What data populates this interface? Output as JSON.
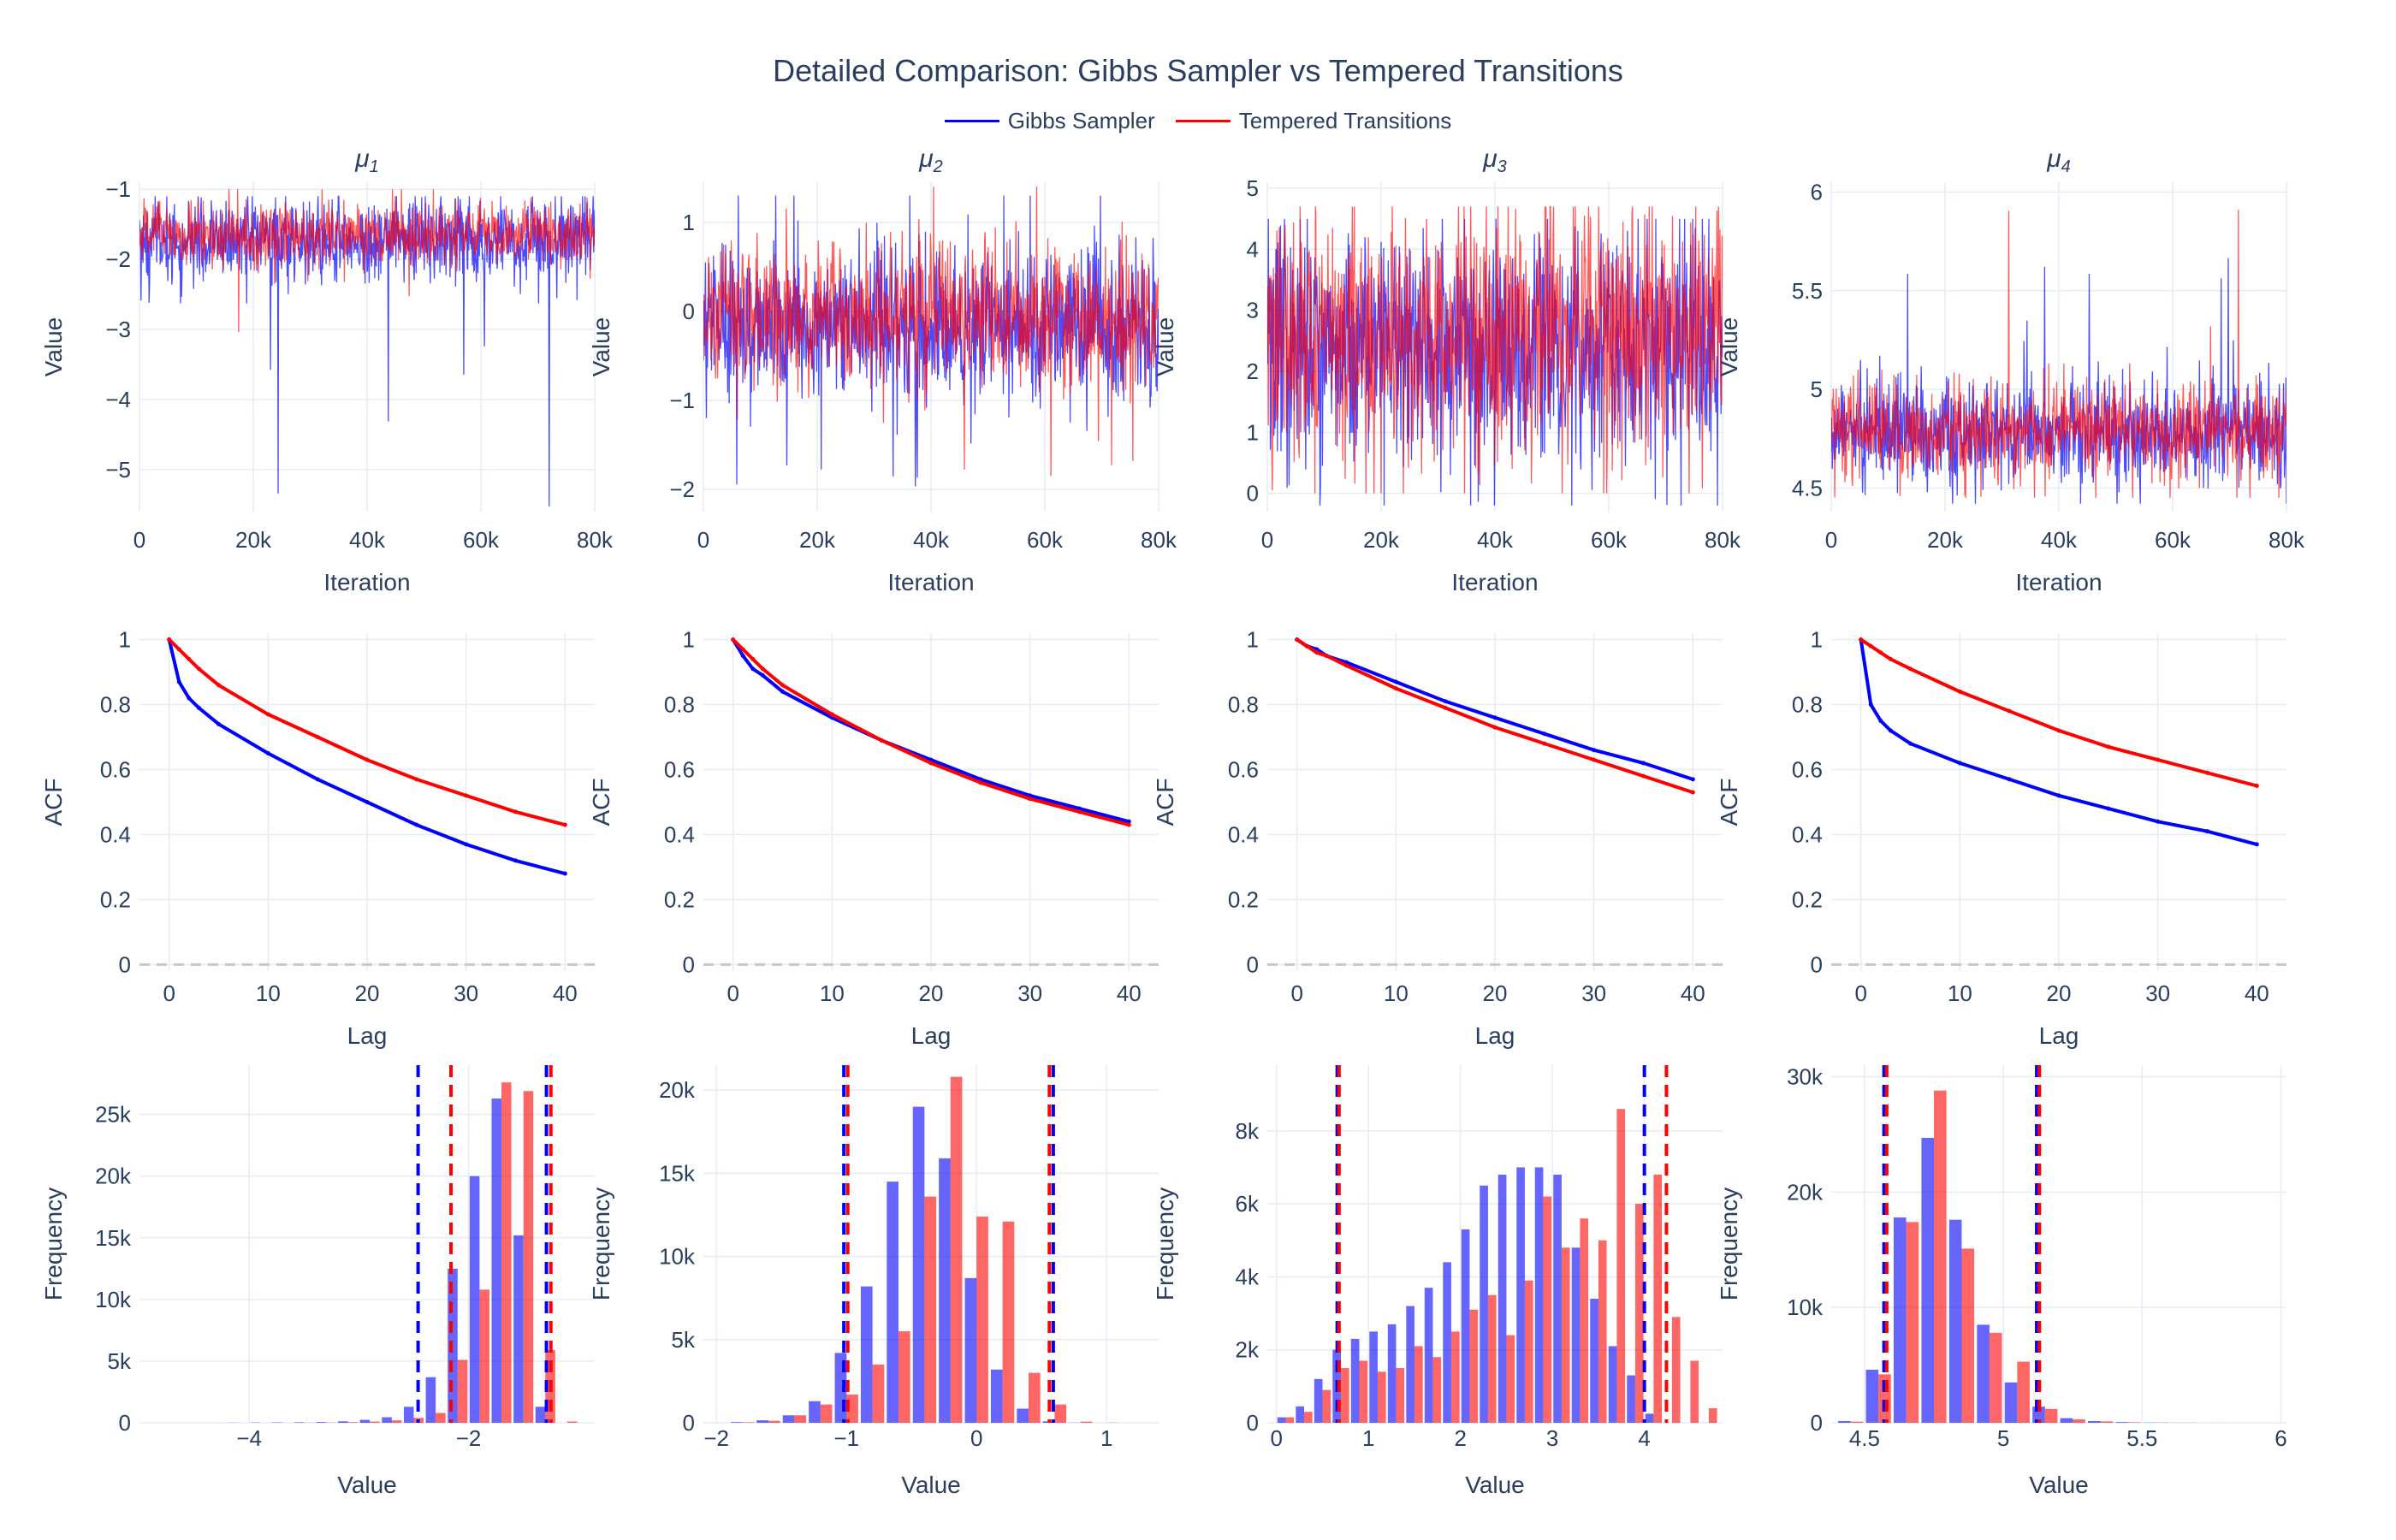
{
  "title": "Detailed Comparison: Gibbs Sampler vs Tempered Transitions",
  "colors": {
    "gibbs": "#0000ff",
    "tempered": "#ff0000",
    "grid": "#e5ecf6",
    "axis_text": "#2a3f5f",
    "dash": "#c8c8c8"
  },
  "legend": [
    {
      "name": "Gibbs Sampler",
      "color": "#0000ff"
    },
    {
      "name": "Tempered Transitions",
      "color": "#ff0000"
    }
  ],
  "chart_data": [
    {
      "type": "line",
      "title": "μ1",
      "xlabel": "Iteration",
      "ylabel": "Value",
      "xlim": [
        0,
        80000
      ],
      "ylim": [
        -5.6,
        -0.9
      ],
      "xticks": [
        0,
        20000,
        40000,
        60000,
        80000
      ],
      "xtick_labels": [
        "0",
        "20k",
        "40k",
        "60k",
        "80k"
      ],
      "yticks": [
        -5,
        -4,
        -3,
        -2,
        -1
      ],
      "ytick_labels": [
        "−5",
        "−4",
        "−3",
        "−2",
        "−1"
      ],
      "series": [
        {
          "name": "Gibbs Sampler",
          "center": -1.75,
          "sd": 0.32,
          "min": -5.55,
          "max": -1.1
        },
        {
          "name": "Tempered Transitions",
          "center": -1.65,
          "sd": 0.22,
          "min": -3.5,
          "max": -1.0
        }
      ]
    },
    {
      "type": "line",
      "title": "μ2",
      "xlabel": "Iteration",
      "ylabel": "Value",
      "xlim": [
        0,
        80000
      ],
      "ylim": [
        -2.25,
        1.45
      ],
      "xticks": [
        0,
        20000,
        40000,
        60000,
        80000
      ],
      "xtick_labels": [
        "0",
        "20k",
        "40k",
        "60k",
        "80k"
      ],
      "yticks": [
        -2,
        -1,
        0,
        1
      ],
      "ytick_labels": [
        "−2",
        "−1",
        "0",
        "1"
      ],
      "series": [
        {
          "name": "Gibbs Sampler",
          "center": -0.15,
          "sd": 0.42,
          "min": -2.1,
          "max": 1.3
        },
        {
          "name": "Tempered Transitions",
          "center": -0.05,
          "sd": 0.4,
          "min": -1.9,
          "max": 1.4
        }
      ]
    },
    {
      "type": "line",
      "title": "μ3",
      "xlabel": "Iteration",
      "ylabel": "Value",
      "xlim": [
        0,
        80000
      ],
      "ylim": [
        -0.3,
        5.1
      ],
      "xticks": [
        0,
        20000,
        40000,
        60000,
        80000
      ],
      "xtick_labels": [
        "0",
        "20k",
        "40k",
        "60k",
        "80k"
      ],
      "yticks": [
        0,
        1,
        2,
        3,
        4,
        5
      ],
      "ytick_labels": [
        "0",
        "1",
        "2",
        "3",
        "4",
        "5"
      ],
      "series": [
        {
          "name": "Gibbs Sampler",
          "center": 2.45,
          "sd": 0.95,
          "min": -0.2,
          "max": 4.5
        },
        {
          "name": "Tempered Transitions",
          "center": 2.6,
          "sd": 1.0,
          "min": 0.0,
          "max": 4.7
        }
      ]
    },
    {
      "type": "line",
      "title": "μ4",
      "xlabel": "Iteration",
      "ylabel": "Value",
      "xlim": [
        0,
        80000
      ],
      "ylim": [
        4.38,
        6.05
      ],
      "xticks": [
        0,
        20000,
        40000,
        60000,
        80000
      ],
      "xtick_labels": [
        "0",
        "20k",
        "40k",
        "60k",
        "80k"
      ],
      "yticks": [
        4.5,
        5,
        5.5,
        6
      ],
      "ytick_labels": [
        "4.5",
        "5",
        "5.5",
        "6"
      ],
      "series": [
        {
          "name": "Gibbs Sampler",
          "center": 4.78,
          "sd": 0.13,
          "min": 4.42,
          "max": 5.8
        },
        {
          "name": "Tempered Transitions",
          "center": 4.8,
          "sd": 0.12,
          "min": 4.45,
          "max": 5.95
        }
      ]
    },
    {
      "type": "line",
      "title": "",
      "xlabel": "Lag",
      "ylabel": "ACF",
      "xlim": [
        -3,
        43
      ],
      "ylim": [
        -0.02,
        1.02
      ],
      "xticks": [
        0,
        10,
        20,
        30,
        40
      ],
      "xtick_labels": [
        "0",
        "10",
        "20",
        "30",
        "40"
      ],
      "yticks": [
        0,
        0.2,
        0.4,
        0.6,
        0.8,
        1
      ],
      "ytick_labels": [
        "0",
        "0.2",
        "0.4",
        "0.6",
        "0.8",
        "1"
      ],
      "zero_line": true,
      "series": [
        {
          "name": "Gibbs Sampler",
          "lag": [
            0,
            1,
            2,
            3,
            5,
            10,
            15,
            20,
            25,
            30,
            35,
            40
          ],
          "acf": [
            1,
            0.87,
            0.82,
            0.79,
            0.74,
            0.65,
            0.57,
            0.5,
            0.43,
            0.37,
            0.32,
            0.28
          ]
        },
        {
          "name": "Tempered Transitions",
          "lag": [
            0,
            1,
            2,
            3,
            5,
            10,
            15,
            20,
            25,
            30,
            35,
            40
          ],
          "acf": [
            1,
            0.97,
            0.94,
            0.91,
            0.86,
            0.77,
            0.7,
            0.63,
            0.57,
            0.52,
            0.47,
            0.43
          ]
        }
      ]
    },
    {
      "type": "line",
      "title": "",
      "xlabel": "Lag",
      "ylabel": "ACF",
      "xlim": [
        -3,
        43
      ],
      "ylim": [
        -0.02,
        1.02
      ],
      "xticks": [
        0,
        10,
        20,
        30,
        40
      ],
      "xtick_labels": [
        "0",
        "10",
        "20",
        "30",
        "40"
      ],
      "yticks": [
        0,
        0.2,
        0.4,
        0.6,
        0.8,
        1
      ],
      "ytick_labels": [
        "0",
        "0.2",
        "0.4",
        "0.6",
        "0.8",
        "1"
      ],
      "zero_line": true,
      "series": [
        {
          "name": "Gibbs Sampler",
          "lag": [
            0,
            1,
            2,
            3,
            5,
            10,
            15,
            20,
            25,
            30,
            35,
            40
          ],
          "acf": [
            1,
            0.95,
            0.91,
            0.89,
            0.84,
            0.76,
            0.69,
            0.63,
            0.57,
            0.52,
            0.48,
            0.44
          ]
        },
        {
          "name": "Tempered Transitions",
          "lag": [
            0,
            1,
            2,
            3,
            5,
            10,
            15,
            20,
            25,
            30,
            35,
            40
          ],
          "acf": [
            1,
            0.97,
            0.94,
            0.91,
            0.86,
            0.77,
            0.69,
            0.62,
            0.56,
            0.51,
            0.47,
            0.43
          ]
        }
      ]
    },
    {
      "type": "line",
      "title": "",
      "xlabel": "Lag",
      "ylabel": "ACF",
      "xlim": [
        -3,
        43
      ],
      "ylim": [
        -0.02,
        1.02
      ],
      "xticks": [
        0,
        10,
        20,
        30,
        40
      ],
      "xtick_labels": [
        "0",
        "10",
        "20",
        "30",
        "40"
      ],
      "yticks": [
        0,
        0.2,
        0.4,
        0.6,
        0.8,
        1
      ],
      "ytick_labels": [
        "0",
        "0.2",
        "0.4",
        "0.6",
        "0.8",
        "1"
      ],
      "zero_line": true,
      "series": [
        {
          "name": "Gibbs Sampler",
          "lag": [
            0,
            1,
            2,
            3,
            5,
            10,
            15,
            20,
            25,
            30,
            35,
            40
          ],
          "acf": [
            1,
            0.98,
            0.97,
            0.95,
            0.93,
            0.87,
            0.81,
            0.76,
            0.71,
            0.66,
            0.62,
            0.57
          ]
        },
        {
          "name": "Tempered Transitions",
          "lag": [
            0,
            1,
            2,
            3,
            5,
            10,
            15,
            20,
            25,
            30,
            35,
            40
          ],
          "acf": [
            1,
            0.98,
            0.96,
            0.95,
            0.92,
            0.85,
            0.79,
            0.73,
            0.68,
            0.63,
            0.58,
            0.53
          ]
        }
      ]
    },
    {
      "type": "line",
      "title": "",
      "xlabel": "Lag",
      "ylabel": "ACF",
      "xlim": [
        -3,
        43
      ],
      "ylim": [
        -0.02,
        1.02
      ],
      "xticks": [
        0,
        10,
        20,
        30,
        40
      ],
      "xtick_labels": [
        "0",
        "10",
        "20",
        "30",
        "40"
      ],
      "yticks": [
        0,
        0.2,
        0.4,
        0.6,
        0.8,
        1
      ],
      "ytick_labels": [
        "0",
        "0.2",
        "0.4",
        "0.6",
        "0.8",
        "1"
      ],
      "zero_line": true,
      "series": [
        {
          "name": "Gibbs Sampler",
          "lag": [
            0,
            1,
            2,
            3,
            5,
            10,
            15,
            20,
            25,
            30,
            35,
            40
          ],
          "acf": [
            1,
            0.8,
            0.75,
            0.72,
            0.68,
            0.62,
            0.57,
            0.52,
            0.48,
            0.44,
            0.41,
            0.37
          ]
        },
        {
          "name": "Tempered Transitions",
          "lag": [
            0,
            1,
            2,
            3,
            5,
            10,
            15,
            20,
            25,
            30,
            35,
            40
          ],
          "acf": [
            1,
            0.98,
            0.96,
            0.94,
            0.91,
            0.84,
            0.78,
            0.72,
            0.67,
            0.63,
            0.59,
            0.55
          ]
        }
      ]
    },
    {
      "type": "bar",
      "title": "",
      "xlabel": "Value",
      "ylabel": "Frequency",
      "xlim": [
        -5.0,
        -0.85
      ],
      "ylim": [
        0,
        29000
      ],
      "xticks": [
        -4,
        -2
      ],
      "xtick_labels": [
        "−4",
        "−2"
      ],
      "yticks": [
        0,
        5000,
        10000,
        15000,
        20000,
        25000
      ],
      "ytick_labels": [
        "0",
        "5k",
        "10k",
        "15k",
        "20k",
        "25k"
      ],
      "bin_start": -5.0,
      "bin_width": 0.2,
      "series": [
        {
          "name": "Gibbs Sampler",
          "values": [
            0,
            0,
            0,
            0,
            10,
            20,
            30,
            40,
            60,
            120,
            240,
            450,
            1300,
            3700,
            12500,
            20000,
            26300,
            15200,
            1300,
            0
          ]
        },
        {
          "name": "Tempered Transitions",
          "values": [
            0,
            0,
            0,
            0,
            0,
            0,
            0,
            10,
            20,
            50,
            100,
            200,
            400,
            800,
            5100,
            10800,
            27600,
            26900,
            5900,
            100
          ]
        }
      ],
      "vlines": [
        {
          "series": "Gibbs Sampler",
          "x": -2.46
        },
        {
          "series": "Gibbs Sampler",
          "x": -1.29
        },
        {
          "series": "Tempered Transitions",
          "x": -2.16
        },
        {
          "series": "Tempered Transitions",
          "x": -1.25
        }
      ]
    },
    {
      "type": "bar",
      "title": "",
      "xlabel": "Value",
      "ylabel": "Frequency",
      "xlim": [
        -2.1,
        1.4
      ],
      "ylim": [
        0,
        21500
      ],
      "xticks": [
        -2,
        -1,
        0,
        1
      ],
      "xtick_labels": [
        "−2",
        "−1",
        "0",
        "1"
      ],
      "yticks": [
        0,
        5000,
        10000,
        15000,
        20000
      ],
      "ytick_labels": [
        "0",
        "5k",
        "10k",
        "15k",
        "20k"
      ],
      "bin_start": -1.9,
      "bin_width": 0.2,
      "series": [
        {
          "name": "Gibbs Sampler",
          "values": [
            40,
            150,
            450,
            1300,
            4200,
            8200,
            14500,
            19000,
            15900,
            8700,
            3200,
            850,
            90,
            10,
            0,
            0
          ]
        },
        {
          "name": "Tempered Transitions",
          "values": [
            30,
            120,
            450,
            1100,
            1700,
            3500,
            5500,
            13600,
            20800,
            12400,
            12100,
            3000,
            1100,
            70,
            10,
            0
          ]
        }
      ],
      "vlines": [
        {
          "series": "Gibbs Sampler",
          "x": -1.02
        },
        {
          "series": "Gibbs Sampler",
          "x": 0.59
        },
        {
          "series": "Tempered Transitions",
          "x": -0.99
        },
        {
          "series": "Tempered Transitions",
          "x": 0.56
        }
      ]
    },
    {
      "type": "bar",
      "title": "",
      "xlabel": "Value",
      "ylabel": "Frequency",
      "xlim": [
        -0.1,
        4.85
      ],
      "ylim": [
        0,
        9800
      ],
      "xticks": [
        0,
        1,
        2,
        3,
        4
      ],
      "xtick_labels": [
        "0",
        "1",
        "2",
        "3",
        "4"
      ],
      "yticks": [
        0,
        2000,
        4000,
        6000,
        8000
      ],
      "ytick_labels": [
        "0",
        "2k",
        "4k",
        "6k",
        "8k"
      ],
      "bin_start": 0.0,
      "bin_width": 0.2,
      "series": [
        {
          "name": "Gibbs Sampler",
          "values": [
            150,
            450,
            1200,
            2000,
            2300,
            2500,
            2700,
            3200,
            3700,
            4400,
            5300,
            6500,
            6800,
            7000,
            7000,
            6800,
            4800,
            3400,
            2100,
            1300,
            250,
            0,
            0,
            0
          ]
        },
        {
          "name": "Tempered Transitions",
          "values": [
            150,
            300,
            900,
            1500,
            1700,
            1400,
            1500,
            2100,
            1800,
            2500,
            3100,
            3500,
            2400,
            3900,
            6200,
            4800,
            5600,
            5000,
            8600,
            6000,
            6800,
            2900,
            1700,
            400
          ]
        }
      ],
      "vlines": [
        {
          "series": "Gibbs Sampler",
          "x": 0.66
        },
        {
          "series": "Gibbs Sampler",
          "x": 4.0
        },
        {
          "series": "Tempered Transitions",
          "x": 0.68
        },
        {
          "series": "Tempered Transitions",
          "x": 4.24
        }
      ]
    },
    {
      "type": "bar",
      "title": "",
      "xlabel": "Value",
      "ylabel": "Frequency",
      "xlim": [
        4.38,
        6.02
      ],
      "ylim": [
        0,
        31000
      ],
      "xticks": [
        4.5,
        5,
        5.5,
        6
      ],
      "xtick_labels": [
        "4.5",
        "5",
        "5.5",
        "6"
      ],
      "bin_start": 4.4,
      "bin_width": 0.1,
      "yticks": [
        0,
        10000,
        20000,
        30000
      ],
      "ytick_labels": [
        "0",
        "10k",
        "20k",
        "30k"
      ],
      "series": [
        {
          "name": "Gibbs Sampler",
          "values": [
            150,
            4600,
            17800,
            24700,
            17600,
            8500,
            3500,
            1400,
            400,
            150,
            60,
            20,
            10,
            0,
            0,
            0
          ]
        },
        {
          "name": "Tempered Transitions",
          "values": [
            100,
            4200,
            17400,
            28800,
            15100,
            7800,
            5300,
            1200,
            300,
            120,
            40,
            20,
            10,
            5,
            0,
            0
          ]
        }
      ],
      "vlines": [
        {
          "series": "Gibbs Sampler",
          "x": 4.57
        },
        {
          "series": "Gibbs Sampler",
          "x": 5.12
        },
        {
          "series": "Tempered Transitions",
          "x": 4.58
        },
        {
          "series": "Tempered Transitions",
          "x": 5.13
        }
      ]
    }
  ]
}
